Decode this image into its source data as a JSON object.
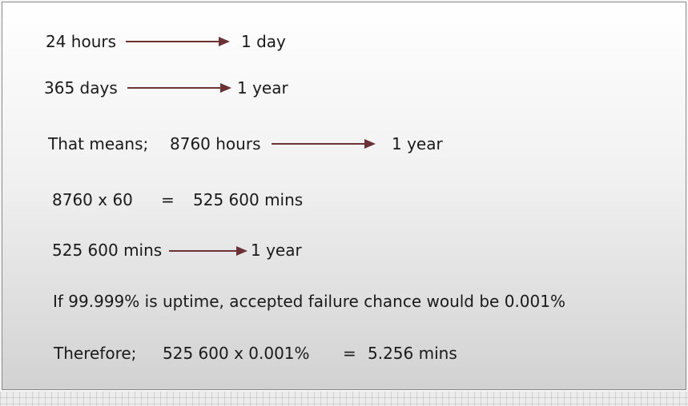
{
  "lines": {
    "l1": {
      "left": "24 hours",
      "right": "1 day"
    },
    "l2": {
      "left": "365 days",
      "right": "1 year"
    },
    "l3": {
      "prefix": "That means;",
      "left": "8760 hours",
      "right": "1 year"
    },
    "l4": {
      "left": "8760 x 60",
      "eq": "=",
      "right": "525 600 mins"
    },
    "l5": {
      "left": "525 600 mins",
      "right": "1 year"
    },
    "l6": {
      "text": "If 99.999% is uptime, accepted failure chance would be 0.001%"
    },
    "l7": {
      "prefix": "Therefore;",
      "left": "525 600 x 0.001%",
      "eq": "=",
      "right": "5.256 mins"
    }
  },
  "colors": {
    "arrow": "#6b3236",
    "text": "#1a1a1a"
  }
}
